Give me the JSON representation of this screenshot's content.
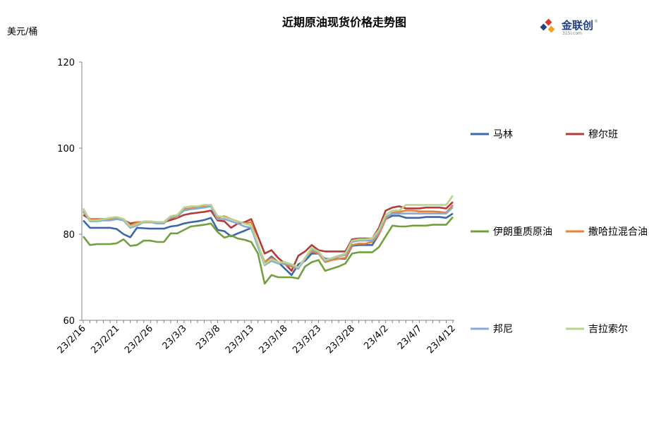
{
  "chart_data": {
    "type": "line",
    "title": "近期原油现货价格走势图",
    "ylabel": "美元/桶",
    "xlabel": "",
    "ylim": [
      60,
      120
    ],
    "yticks": [
      60,
      80,
      100,
      120
    ],
    "grid": false,
    "legend_position": "right",
    "x": [
      "23/2/16",
      "23/2/17",
      "23/2/18",
      "23/2/19",
      "23/2/20",
      "23/2/21",
      "23/2/22",
      "23/2/23",
      "23/2/24",
      "23/2/25",
      "23/2/26",
      "23/2/27",
      "23/2/28",
      "23/3/1",
      "23/3/2",
      "23/3/3",
      "23/3/4",
      "23/3/5",
      "23/3/6",
      "23/3/7",
      "23/3/8",
      "23/3/9",
      "23/3/10",
      "23/3/11",
      "23/3/12",
      "23/3/13",
      "23/3/14",
      "23/3/15",
      "23/3/16",
      "23/3/17",
      "23/3/18",
      "23/3/19",
      "23/3/20",
      "23/3/21",
      "23/3/22",
      "23/3/23",
      "23/3/24",
      "23/3/25",
      "23/3/26",
      "23/3/27",
      "23/3/28",
      "23/3/29",
      "23/3/30",
      "23/3/31",
      "23/4/1",
      "23/4/2",
      "23/4/3",
      "23/4/4",
      "23/4/5",
      "23/4/6",
      "23/4/7",
      "23/4/8",
      "23/4/9",
      "23/4/10",
      "23/4/11",
      "23/4/12"
    ],
    "xtick_labels": [
      "23/2/16",
      "23/2/21",
      "23/2/26",
      "23/3/3",
      "23/3/8",
      "23/3/13",
      "23/3/18",
      "23/3/23",
      "23/3/28",
      "23/4/2",
      "23/4/7",
      "23/4/12"
    ],
    "series": [
      {
        "name": "马林",
        "color": "#3d68a8",
        "values": [
          83.2,
          81.5,
          81.5,
          81.5,
          81.5,
          81.2,
          80.0,
          79.3,
          81.5,
          81.4,
          81.3,
          81.3,
          81.3,
          81.8,
          82.0,
          82.5,
          82.8,
          83.0,
          83.3,
          83.8,
          81.0,
          80.7,
          79.5,
          80.2,
          80.8,
          81.5,
          77.2,
          73.5,
          74.8,
          73.5,
          72.0,
          70.5,
          73.0,
          73.8,
          75.5,
          75.5,
          74.3,
          74.3,
          74.3,
          74.3,
          77.3,
          77.5,
          77.5,
          77.5,
          80.0,
          83.5,
          84.3,
          84.3,
          83.8,
          83.8,
          83.8,
          84.0,
          84.0,
          84.0,
          83.8,
          84.8
        ]
      },
      {
        "name": "穆尔班",
        "color": "#b23b3b",
        "values": [
          84.5,
          83.5,
          83.5,
          83.5,
          83.5,
          83.8,
          83.3,
          82.5,
          82.8,
          82.8,
          82.8,
          82.8,
          82.8,
          83.3,
          83.8,
          84.5,
          84.8,
          85.0,
          85.2,
          85.5,
          83.2,
          83.0,
          81.5,
          82.5,
          82.8,
          83.5,
          79.5,
          75.5,
          76.3,
          74.5,
          73.2,
          71.5,
          75.0,
          76.0,
          77.5,
          76.3,
          76.0,
          76.0,
          76.0,
          76.0,
          78.8,
          79.0,
          79.0,
          79.0,
          81.5,
          85.5,
          86.2,
          86.5,
          86.0,
          86.0,
          86.0,
          86.2,
          86.2,
          86.2,
          86.0,
          87.5
        ]
      },
      {
        "name": "伊朗重质原油",
        "color": "#72a03c",
        "values": [
          79.5,
          77.5,
          77.7,
          77.7,
          77.7,
          77.9,
          78.8,
          77.3,
          77.5,
          78.5,
          78.5,
          78.2,
          78.2,
          80.2,
          80.2,
          81.0,
          81.8,
          82.0,
          82.2,
          82.5,
          80.5,
          79.2,
          79.7,
          79.0,
          78.7,
          78.2,
          75.5,
          68.5,
          70.5,
          70.0,
          70.0,
          70.0,
          69.7,
          72.5,
          73.5,
          74.0,
          71.5,
          72.0,
          72.5,
          73.2,
          75.5,
          75.8,
          75.8,
          75.8,
          77.0,
          79.5,
          82.0,
          81.8,
          81.8,
          82.0,
          82.0,
          82.0,
          82.2,
          82.2,
          82.2,
          84.0
        ]
      },
      {
        "name": "撒哈拉混合油",
        "color": "#e6813a",
        "values": [
          85.2,
          83.5,
          83.5,
          83.5,
          83.5,
          83.8,
          83.5,
          82.0,
          82.8,
          82.8,
          82.8,
          82.8,
          82.8,
          83.8,
          84.0,
          85.8,
          86.0,
          86.2,
          86.5,
          86.8,
          83.8,
          84.2,
          83.5,
          83.0,
          82.5,
          82.8,
          77.5,
          73.5,
          74.5,
          73.5,
          73.0,
          72.5,
          72.0,
          74.5,
          76.0,
          75.5,
          73.5,
          74.0,
          74.3,
          74.5,
          77.5,
          77.8,
          77.8,
          78.2,
          80.0,
          83.5,
          85.0,
          85.2,
          85.5,
          85.5,
          85.3,
          85.3,
          85.3,
          85.2,
          85.0,
          86.8
        ]
      },
      {
        "name": "邦尼",
        "color": "#8aa9d6",
        "values": [
          85.5,
          83.0,
          83.0,
          83.2,
          83.2,
          83.5,
          83.2,
          81.5,
          82.0,
          82.8,
          82.8,
          82.5,
          82.5,
          84.0,
          84.2,
          85.5,
          85.8,
          86.0,
          86.2,
          86.5,
          83.5,
          83.5,
          83.0,
          82.5,
          81.8,
          81.5,
          77.0,
          72.8,
          73.8,
          73.2,
          73.2,
          72.8,
          72.0,
          74.2,
          76.5,
          75.8,
          73.8,
          74.3,
          74.8,
          75.2,
          78.2,
          78.5,
          78.5,
          78.5,
          80.5,
          84.0,
          84.8,
          84.8,
          84.8,
          84.8,
          84.8,
          84.8,
          84.8,
          84.8,
          84.8,
          86.3
        ]
      },
      {
        "name": "吉拉索尔",
        "color": "#b8d48a",
        "values": [
          86.0,
          83.2,
          83.2,
          83.5,
          83.8,
          84.0,
          83.5,
          81.8,
          82.3,
          83.0,
          83.0,
          82.8,
          82.8,
          84.2,
          84.5,
          86.2,
          86.5,
          86.5,
          86.8,
          86.8,
          84.2,
          84.0,
          83.5,
          83.0,
          82.5,
          82.0,
          77.8,
          73.0,
          74.2,
          73.5,
          73.5,
          73.0,
          72.3,
          74.5,
          76.8,
          76.0,
          74.0,
          74.5,
          75.0,
          75.5,
          78.5,
          78.8,
          78.8,
          79.0,
          81.0,
          84.5,
          85.5,
          85.5,
          86.8,
          86.8,
          86.8,
          86.8,
          86.8,
          86.8,
          86.8,
          89.0
        ]
      }
    ]
  },
  "logo": {
    "text": "金联创",
    "sub": "315i.com",
    "registered": "®"
  }
}
